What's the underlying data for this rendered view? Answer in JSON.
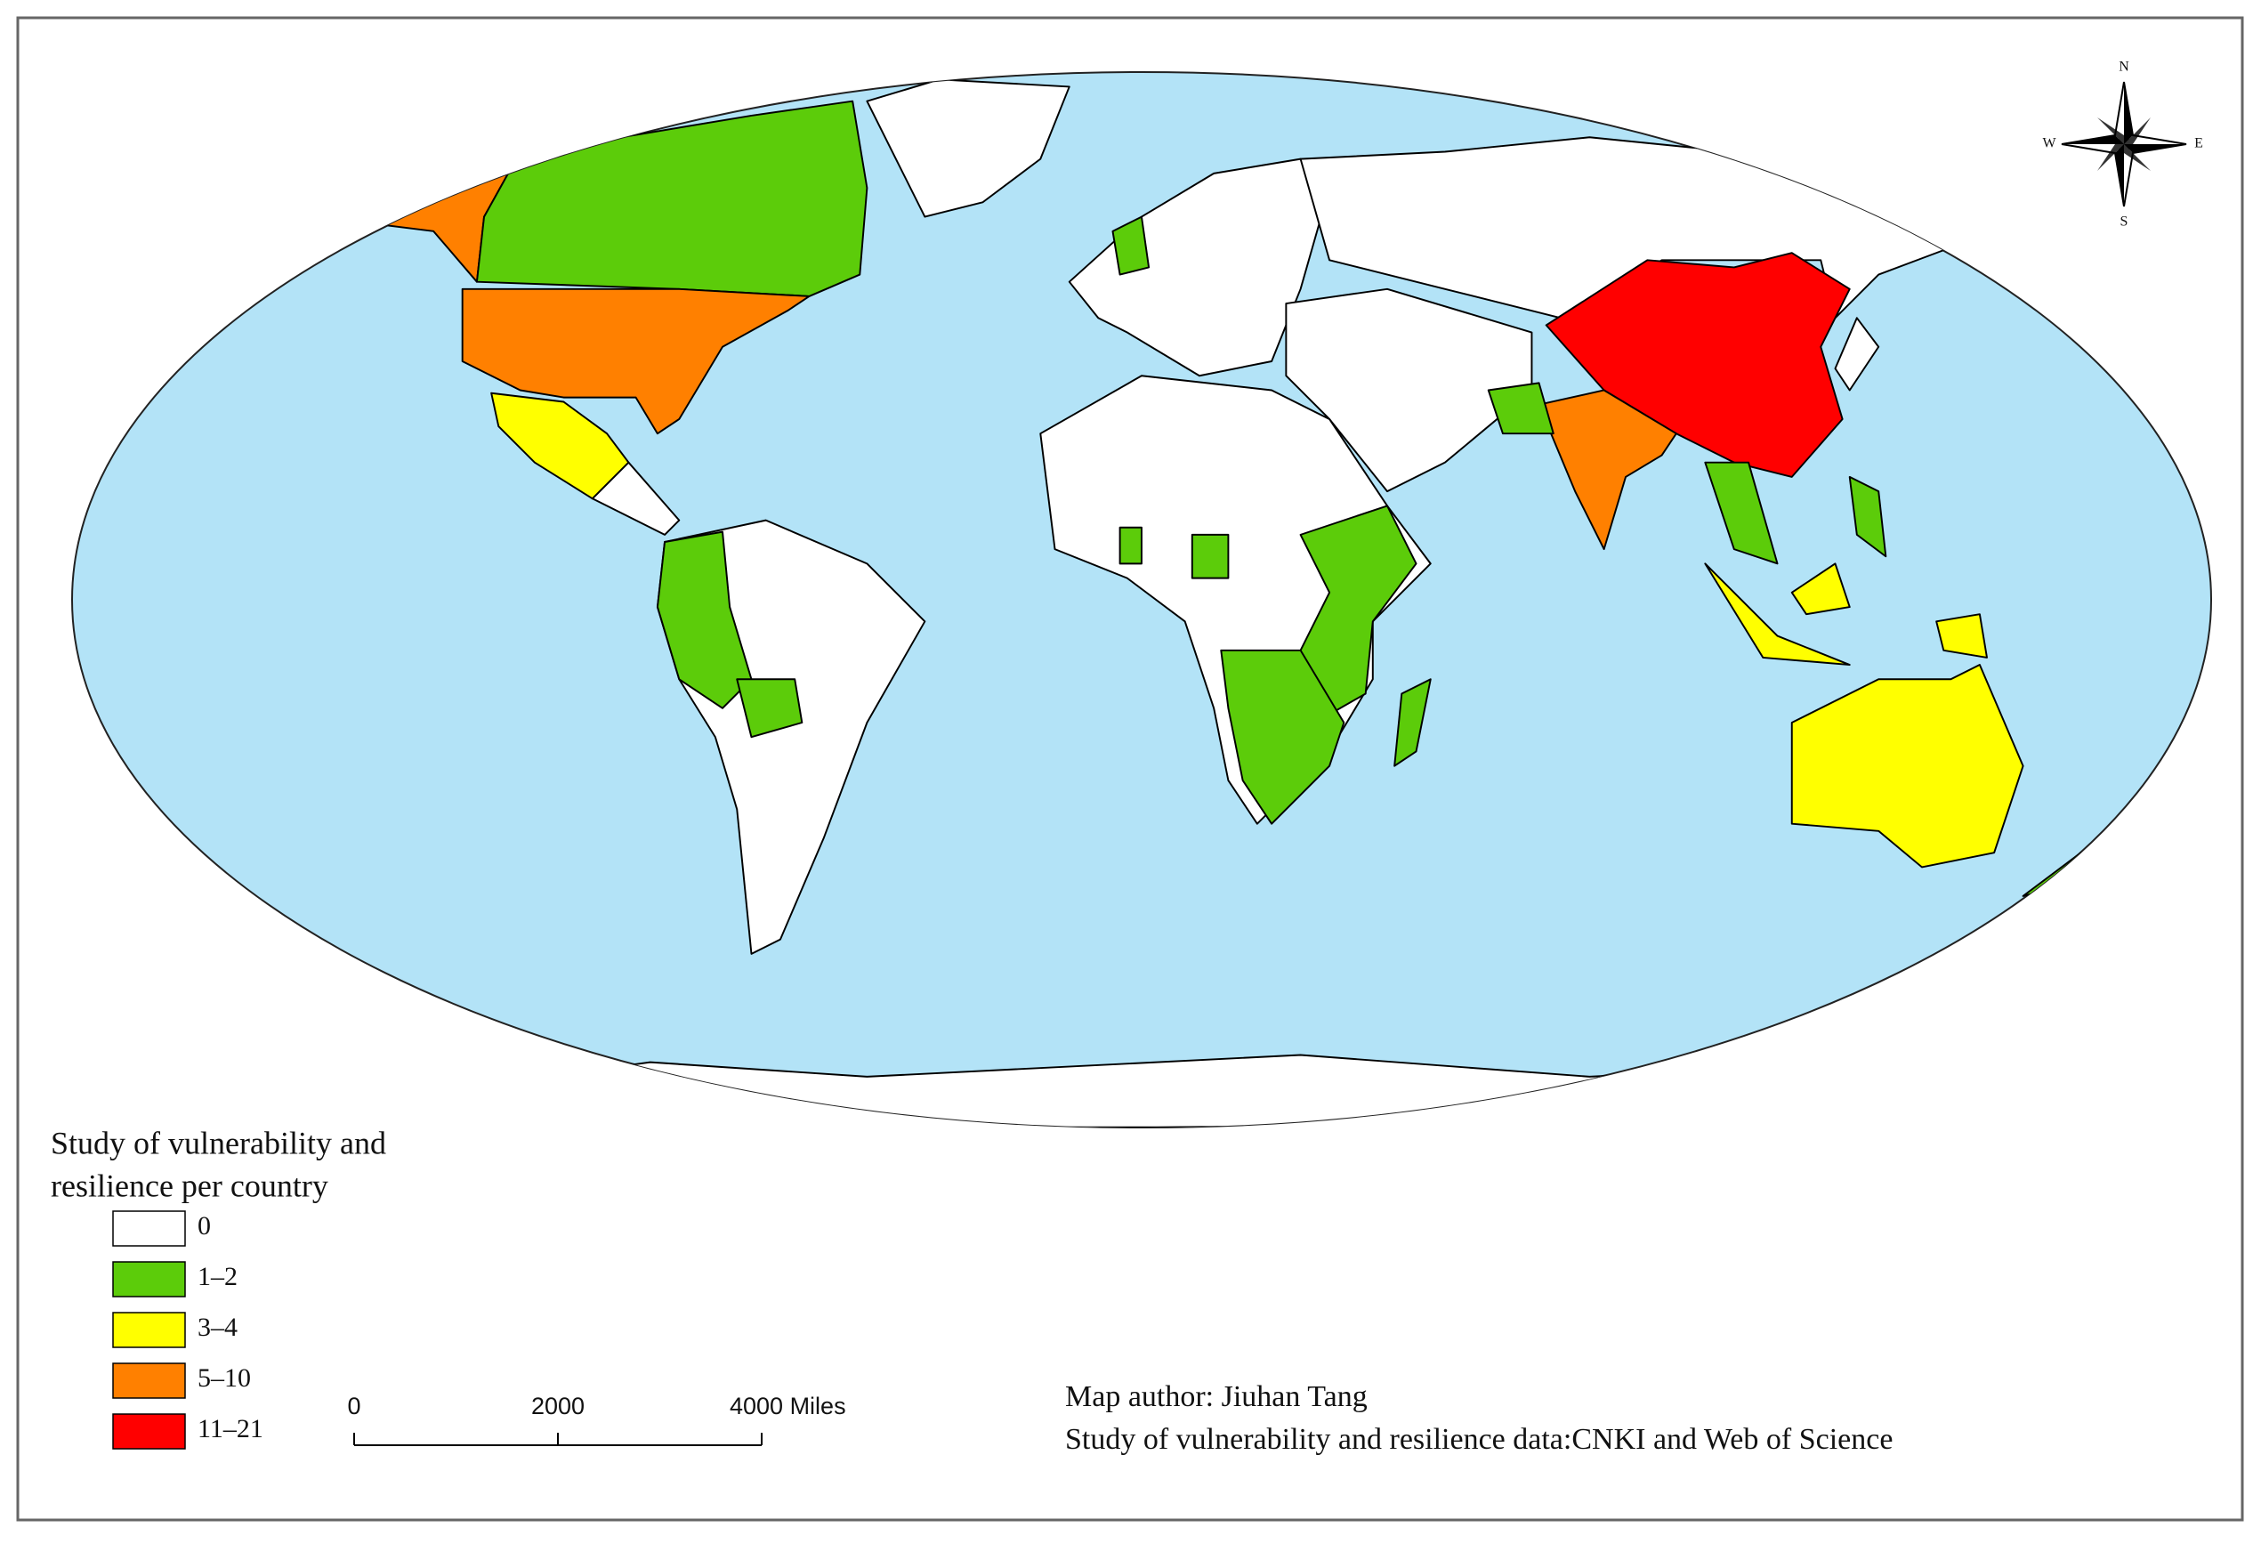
{
  "legend": {
    "title_lines": [
      "Study of vulnerability and",
      "resilience per country"
    ],
    "items": [
      {
        "label": "0",
        "color": "#ffffff"
      },
      {
        "label": "1–2",
        "color": "#5ccc0a"
      },
      {
        "label": "3–4",
        "color": "#ffff00"
      },
      {
        "label": "5–10",
        "color": "#ff8000"
      },
      {
        "label": "11–21",
        "color": "#ff0000"
      }
    ]
  },
  "scale_bar": {
    "labels": [
      "0",
      "2000",
      "4000 Miles"
    ]
  },
  "compass": {
    "n": "N",
    "s": "S",
    "e": "E",
    "w": "W"
  },
  "credits": [
    "Map author: Jiuhan Tang",
    "Study of vulnerability and resilience data:CNKI and Web of Science"
  ]
}
